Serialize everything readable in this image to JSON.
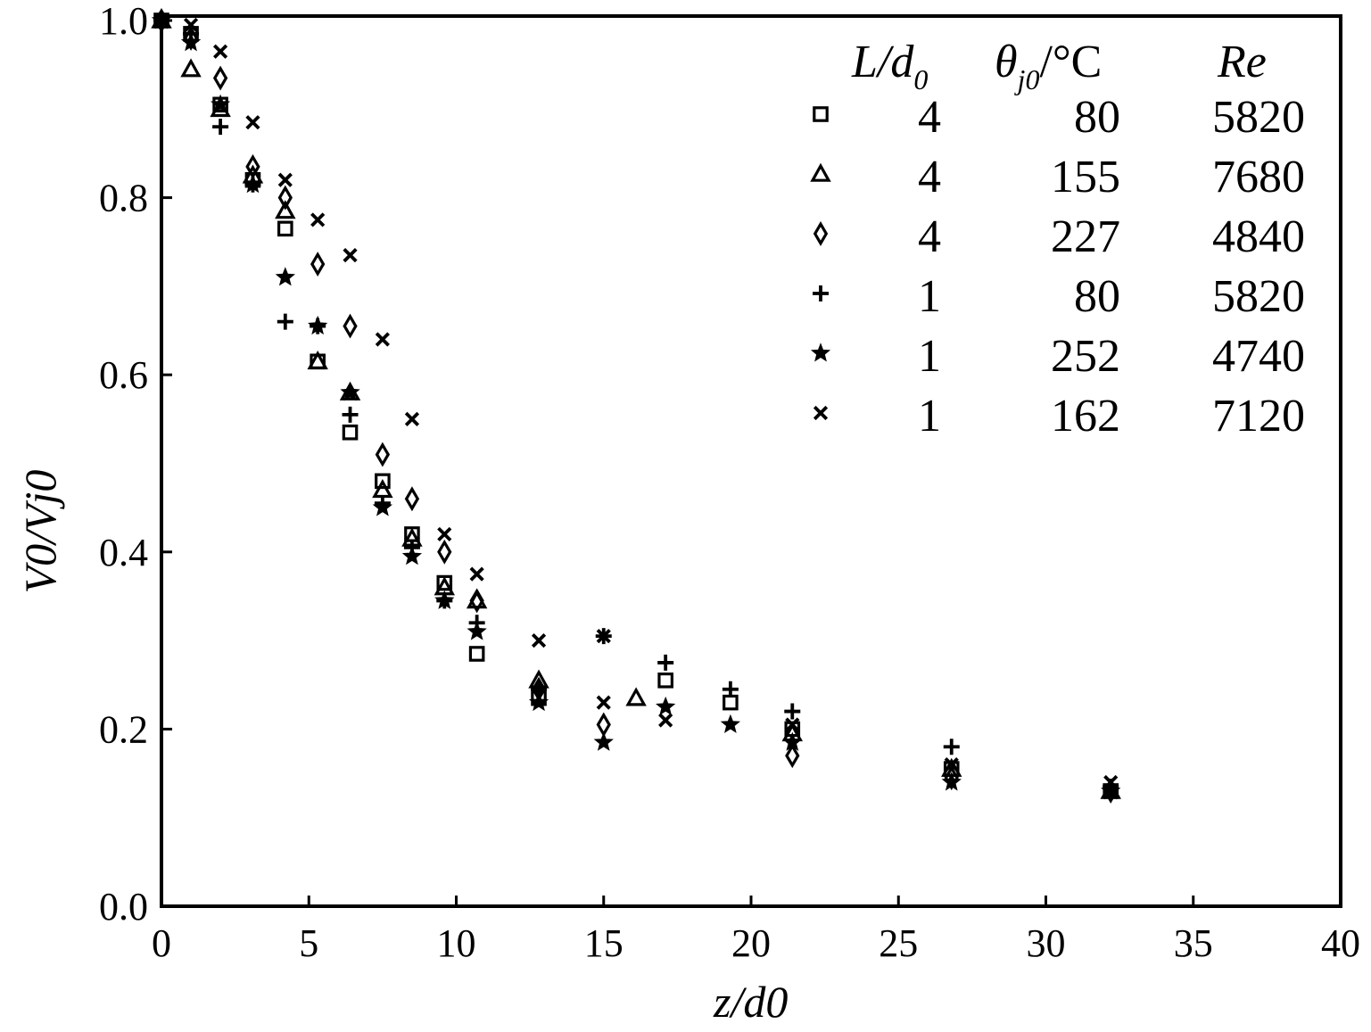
{
  "chart_data": {
    "type": "scatter",
    "xlabel": "z/d0",
    "ylabel": "V0/Vj0",
    "xlim": [
      0,
      40
    ],
    "ylim": [
      0,
      1.0
    ],
    "x_ticks": [
      "0",
      "5",
      "10",
      "15",
      "20",
      "25",
      "30",
      "35",
      "40"
    ],
    "y_ticks": [
      "0.0",
      "0.2",
      "0.4",
      "0.6",
      "0.8",
      "1.0"
    ],
    "grid": false,
    "legend_position": "top-right",
    "legend_headers": {
      "col1": {
        "main": "L/d",
        "sub": "0"
      },
      "col2": {
        "main": "θ",
        "sub": "j0",
        "rest": "/°C"
      },
      "col3": {
        "main": "Re"
      }
    },
    "series": [
      {
        "marker": "square",
        "L_d0": "4",
        "theta": "80",
        "Re": "5820",
        "x": [
          0,
          1,
          2,
          3.1,
          4.2,
          5.3,
          6.4,
          7.5,
          8.5,
          9.6,
          10.7,
          12.8,
          17.1,
          19.3,
          21.4,
          26.8,
          32.2
        ],
        "y": [
          1.0,
          0.985,
          0.905,
          0.82,
          0.765,
          0.615,
          0.535,
          0.48,
          0.42,
          0.365,
          0.285,
          0.235,
          0.255,
          0.23,
          0.2,
          0.155,
          0.13
        ]
      },
      {
        "marker": "triangle",
        "L_d0": "4",
        "theta": "155",
        "Re": "7680",
        "x": [
          0,
          1,
          2,
          3.1,
          4.2,
          5.3,
          6.4,
          7.5,
          8.5,
          9.6,
          10.7,
          12.8,
          16.1,
          21.4,
          26.8,
          32.2
        ],
        "y": [
          1.0,
          0.945,
          0.9,
          0.825,
          0.785,
          0.615,
          0.58,
          0.47,
          0.415,
          0.36,
          0.345,
          0.255,
          0.235,
          0.195,
          0.155,
          0.13
        ]
      },
      {
        "marker": "diamond",
        "L_d0": "4",
        "theta": "227",
        "Re": "4840",
        "x": [
          0,
          1,
          2,
          3.1,
          4.2,
          5.3,
          6.4,
          7.5,
          8.5,
          9.6,
          10.7,
          12.8,
          15,
          21.4,
          26.8,
          32.2
        ],
        "y": [
          1.0,
          0.98,
          0.935,
          0.835,
          0.8,
          0.725,
          0.655,
          0.51,
          0.46,
          0.4,
          0.345,
          0.245,
          0.205,
          0.17,
          0.145,
          0.13
        ]
      },
      {
        "marker": "plus",
        "L_d0": "1",
        "theta": "80",
        "Re": "5820",
        "x": [
          0,
          1,
          2,
          3.1,
          4.2,
          5.3,
          6.4,
          7.5,
          8.5,
          9.6,
          10.7,
          12.8,
          15,
          17.1,
          19.3,
          21.4,
          26.8,
          32.2
        ],
        "y": [
          1.0,
          0.985,
          0.88,
          0.815,
          0.66,
          0.655,
          0.555,
          0.455,
          0.405,
          0.345,
          0.32,
          0.245,
          0.305,
          0.275,
          0.245,
          0.22,
          0.18,
          0.135
        ]
      },
      {
        "marker": "star",
        "L_d0": "1",
        "theta": "252",
        "Re": "4740",
        "x": [
          0,
          1,
          2,
          3.1,
          4.2,
          5.3,
          6.4,
          7.5,
          8.5,
          9.6,
          10.7,
          12.8,
          15,
          17.1,
          19.3,
          21.4,
          26.8,
          32.2
        ],
        "y": [
          1.0,
          0.975,
          0.905,
          0.815,
          0.71,
          0.655,
          0.58,
          0.45,
          0.395,
          0.345,
          0.31,
          0.23,
          0.185,
          0.225,
          0.205,
          0.185,
          0.14,
          0.13
        ]
      },
      {
        "marker": "cross",
        "L_d0": "1",
        "theta": "162",
        "Re": "7120",
        "x": [
          0,
          1,
          2,
          3.1,
          4.2,
          5.3,
          6.4,
          7.5,
          8.5,
          9.6,
          10.7,
          12.8,
          15,
          15,
          17.1,
          21.4,
          26.8,
          32.2
        ],
        "y": [
          1.0,
          0.995,
          0.965,
          0.885,
          0.82,
          0.775,
          0.735,
          0.64,
          0.55,
          0.42,
          0.375,
          0.3,
          0.305,
          0.23,
          0.21,
          0.205,
          0.16,
          0.14
        ]
      }
    ]
  }
}
